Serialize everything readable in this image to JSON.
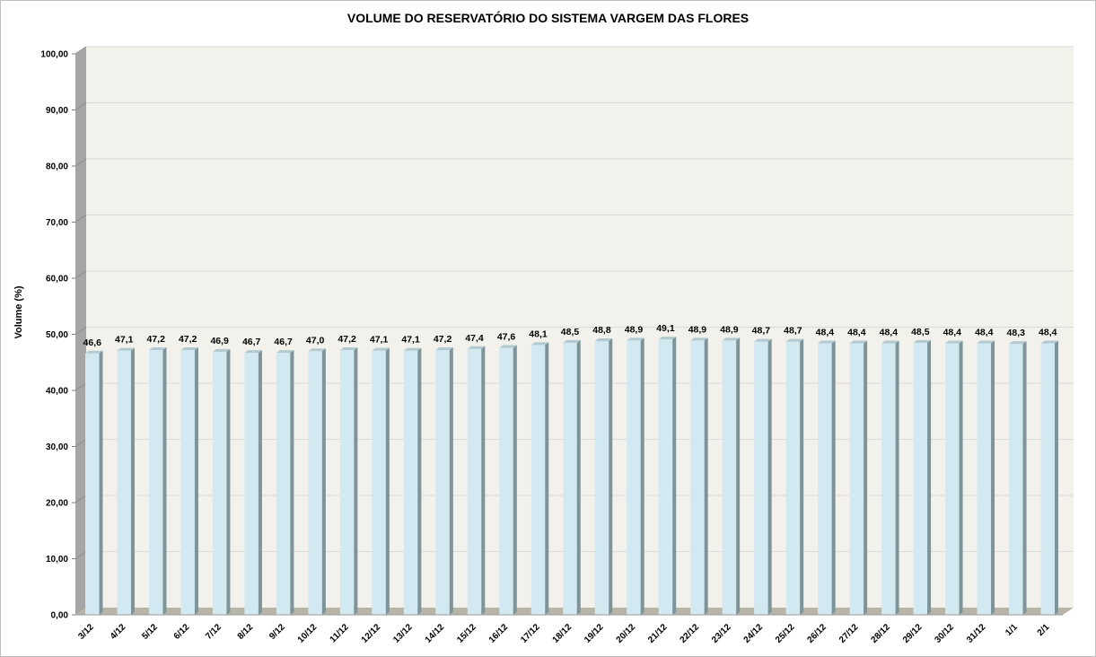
{
  "chart_data": {
    "type": "bar",
    "title": "VOLUME DO RESERVATÓRIO DO SISTEMA VARGEM DAS FLORES",
    "xlabel": "",
    "ylabel": "Volume (%)",
    "ylim": [
      0,
      100
    ],
    "grid": true,
    "y_ticks": [
      "0,00",
      "10,00",
      "20,00",
      "30,00",
      "40,00",
      "50,00",
      "60,00",
      "70,00",
      "80,00",
      "90,00",
      "100,00"
    ],
    "categories": [
      "3/12",
      "4/12",
      "5/12",
      "6/12",
      "7/12",
      "8/12",
      "9/12",
      "10/12",
      "11/12",
      "12/12",
      "13/12",
      "14/12",
      "15/12",
      "16/12",
      "17/12",
      "18/12",
      "19/12",
      "20/12",
      "21/12",
      "22/12",
      "23/12",
      "24/12",
      "25/12",
      "26/12",
      "27/12",
      "28/12",
      "29/12",
      "30/12",
      "31/12",
      "1/1",
      "2/1"
    ],
    "values": [
      46.6,
      47.1,
      47.2,
      47.2,
      46.9,
      46.7,
      46.7,
      47.0,
      47.2,
      47.1,
      47.1,
      47.2,
      47.4,
      47.6,
      48.1,
      48.5,
      48.8,
      48.9,
      49.1,
      48.9,
      48.9,
      48.7,
      48.7,
      48.4,
      48.4,
      48.4,
      48.5,
      48.4,
      48.4,
      48.3,
      48.4
    ],
    "data_labels": [
      "46,6",
      "47,1",
      "47,2",
      "47,2",
      "46,9",
      "46,7",
      "46,7",
      "47,0",
      "47,2",
      "47,1",
      "47,1",
      "47,2",
      "47,4",
      "47,6",
      "48,1",
      "48,5",
      "48,8",
      "48,9",
      "49,1",
      "48,9",
      "48,9",
      "48,7",
      "48,7",
      "48,4",
      "48,4",
      "48,4",
      "48,5",
      "48,4",
      "48,4",
      "48,3",
      "48,4"
    ],
    "colors": {
      "bar_front": "#d3e9f1",
      "bar_side": "#7e9499",
      "bar_top": "#b2c9cf",
      "plot_wall": "#f3f1ec",
      "side_wall": "#a6a6a6",
      "floor": "#b8b4a8",
      "gridline": "#d9d9d9"
    }
  }
}
